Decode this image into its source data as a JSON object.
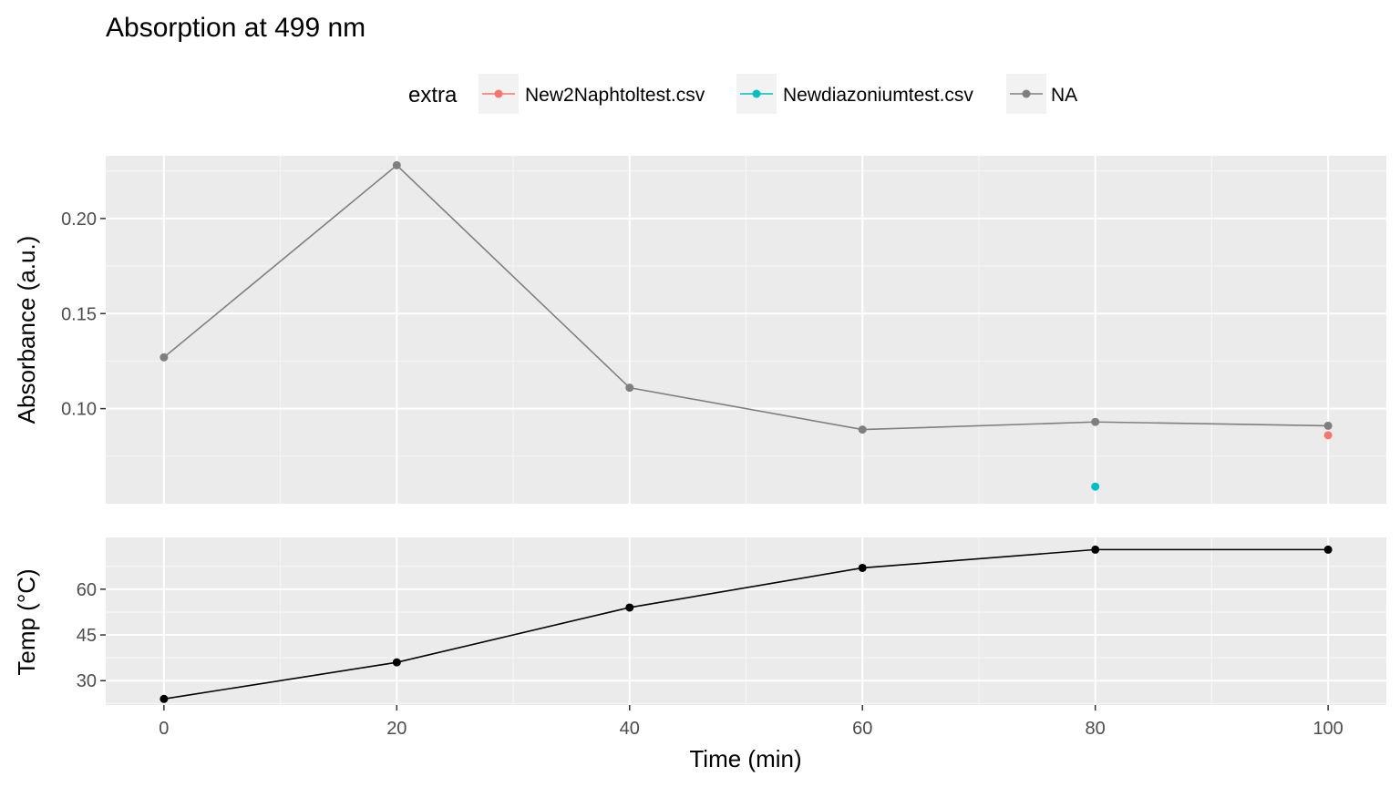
{
  "chart_data": {
    "title": "Absorption at 499 nm",
    "xlabel": "Time (min)",
    "x_ticks": [
      0,
      20,
      40,
      60,
      80,
      100
    ],
    "xlim": [
      -5,
      105
    ],
    "legend": {
      "title": "extra",
      "position": "top",
      "entries": [
        {
          "label": "New2Naphtoltest.csv",
          "color": "#F8766D"
        },
        {
          "label": "Newdiazoniumtest.csv",
          "color": "#00BFC4"
        },
        {
          "label": "NA",
          "color": "#7F7F7F"
        }
      ]
    },
    "panels": [
      {
        "id": "absorbance",
        "type": "line",
        "ylabel": "Absorbance (a.u.)",
        "ylim": [
          0.05,
          0.233
        ],
        "y_ticks": [
          0.1,
          0.15,
          0.2
        ],
        "y_tick_labels": [
          "0.10",
          "0.15",
          "0.20"
        ],
        "grid": true,
        "series": [
          {
            "name": "NA",
            "color": "#7F7F7F",
            "x": [
              0,
              20,
              40,
              60,
              80,
              100
            ],
            "y": [
              0.127,
              0.228,
              0.111,
              0.089,
              0.093,
              0.091
            ],
            "line": true
          },
          {
            "name": "New2Naphtoltest.csv",
            "color": "#F8766D",
            "x": [
              100
            ],
            "y": [
              0.086
            ],
            "line": false
          },
          {
            "name": "Newdiazoniumtest.csv",
            "color": "#00BFC4",
            "x": [
              80
            ],
            "y": [
              0.059
            ],
            "line": false
          }
        ]
      },
      {
        "id": "temperature",
        "type": "line",
        "ylabel": "Temp (°C)",
        "ylim": [
          22,
          77
        ],
        "y_ticks": [
          30,
          45,
          60
        ],
        "y_tick_labels": [
          "30",
          "45",
          "60"
        ],
        "grid": true,
        "series": [
          {
            "color": "#000000",
            "x": [
              0,
              20,
              40,
              60,
              80,
              100
            ],
            "y": [
              24,
              36,
              54,
              67,
              73,
              73
            ],
            "line": true
          }
        ]
      }
    ]
  }
}
